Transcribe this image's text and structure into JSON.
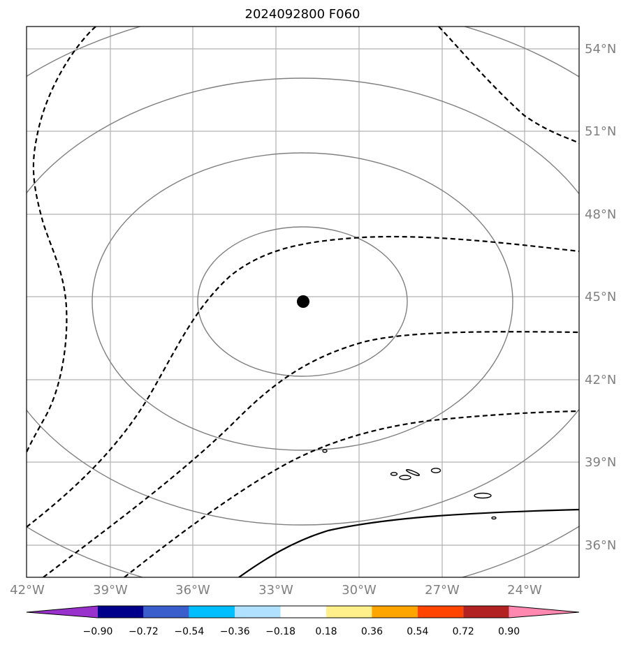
{
  "title": "2024092800 F060",
  "lon_labels": [
    "42°W",
    "39°W",
    "36°W",
    "33°W",
    "30°W",
    "27°W",
    "24°W"
  ],
  "lat_labels": [
    "54°N",
    "51°N",
    "48°N",
    "45°N",
    "42°N",
    "39°N",
    "36°N"
  ],
  "colorbar": {
    "colors": [
      "#9932cc",
      "#00008b",
      "#3a5fcd",
      "#00bfff",
      "#b0e2ff",
      "#ffffff",
      "#fff08c",
      "#ffa500",
      "#ff4500",
      "#b22222",
      "#ff88b0"
    ],
    "tick_labels": [
      "−0.90",
      "−0.72",
      "−0.54",
      "−0.36",
      "−0.18",
      "0.18",
      "0.36",
      "0.54",
      "0.72",
      "0.90"
    ]
  },
  "center_marker": "storm-center-dot"
}
